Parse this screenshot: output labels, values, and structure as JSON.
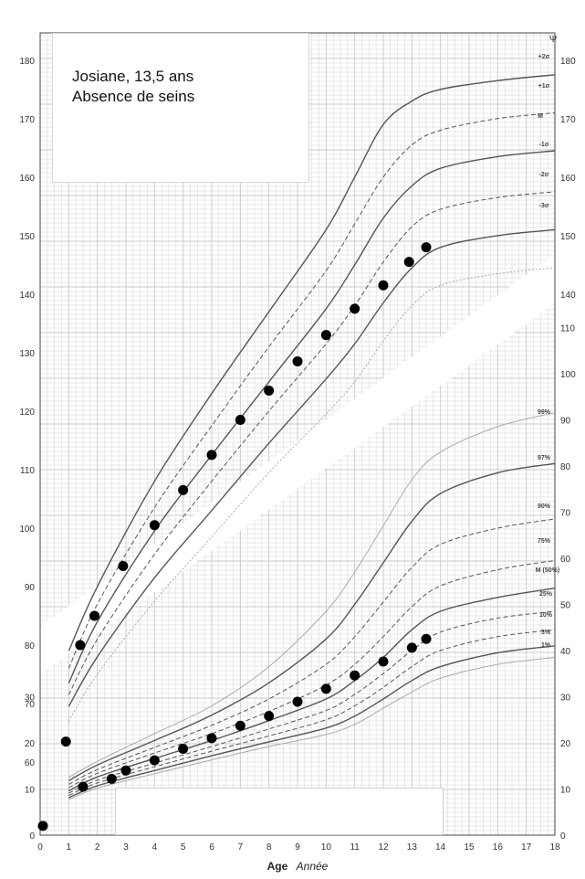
{
  "annotation": {
    "line1": "Josiane, 13,5 ans",
    "line2": "Absence de seins"
  },
  "axis": {
    "x_title_bold": "Age",
    "x_title_italic": "Année",
    "x_ticks": [
      0,
      1,
      2,
      3,
      4,
      5,
      6,
      7,
      8,
      9,
      10,
      11,
      12,
      13,
      14,
      15,
      16,
      17,
      18
    ],
    "height_left_ticks": [
      60,
      70,
      80,
      90,
      100,
      110,
      120,
      130,
      140,
      150,
      160,
      170,
      180
    ],
    "height_right_ticks": [
      140,
      150,
      160,
      170,
      180
    ],
    "weight_left_ticks": [
      0,
      10,
      20,
      30
    ],
    "weight_right_ticks": [
      0,
      10,
      20,
      30,
      40,
      50,
      60,
      70,
      80,
      90,
      100,
      110
    ],
    "corner_symbol": "Ψ"
  },
  "colors": {
    "grid": "#c9c9c9",
    "curve": "#555555",
    "outer_curve": "#aaaaaa",
    "point": "#000000"
  },
  "chart_data": [
    {
      "type": "line",
      "title": "",
      "xlabel": "Age Année",
      "ylabel": "",
      "xlim": [
        0,
        18
      ],
      "ylim": [
        55,
        182
      ],
      "curve_labels": [
        "+2σ",
        "+1σ",
        "M",
        "-1σ",
        "-2σ",
        "-3σ"
      ],
      "series": [
        {
          "name": "+2σ",
          "x": [
            1,
            2,
            4,
            6,
            8,
            10,
            11,
            12,
            13,
            14,
            16,
            18
          ],
          "y": [
            79,
            90,
            108,
            123,
            137,
            151,
            160,
            169,
            173,
            175,
            176.5,
            177.5
          ]
        },
        {
          "name": "+1σ",
          "x": [
            1,
            2,
            4,
            6,
            8,
            10,
            11,
            12,
            13,
            14,
            16,
            18
          ],
          "y": [
            76,
            87,
            103.5,
            117.5,
            131,
            144,
            152,
            160,
            165.5,
            168,
            170,
            171
          ]
        },
        {
          "name": "M",
          "x": [
            1,
            2,
            4,
            6,
            8,
            10,
            11,
            12,
            13,
            14,
            16,
            18
          ],
          "y": [
            73.5,
            84,
            99.5,
            112.5,
            125,
            137.5,
            145,
            153,
            158.5,
            161.5,
            163.5,
            164.5
          ]
        },
        {
          "name": "-1σ",
          "x": [
            1,
            2,
            4,
            6,
            8,
            10,
            11,
            12,
            13,
            14,
            16,
            18
          ],
          "y": [
            71.5,
            81,
            95.5,
            108,
            120,
            131.5,
            138,
            145.5,
            151.5,
            154.5,
            156.5,
            157.5
          ]
        },
        {
          "name": "-2σ",
          "x": [
            1,
            2,
            4,
            6,
            8,
            10,
            11,
            12,
            13,
            14,
            16,
            18
          ],
          "y": [
            69.5,
            78,
            91.5,
            103,
            114.5,
            125.5,
            131.5,
            138.5,
            144.5,
            148,
            150,
            151
          ]
        },
        {
          "name": "-3σ",
          "x": [
            1,
            2,
            4,
            6,
            8,
            10,
            11,
            12,
            13,
            14,
            16,
            18
          ],
          "y": [
            67,
            75,
            87.5,
            98.5,
            109.5,
            119.5,
            125,
            132,
            138,
            141.5,
            143.5,
            144.5
          ]
        }
      ],
      "points": {
        "x": [
          0.9,
          1.4,
          1.9,
          2.9,
          4.0,
          5.0,
          6.0,
          7.0,
          8.0,
          9.0,
          10.0,
          11.0,
          12.0,
          12.9,
          13.5
        ],
        "y": [
          63.5,
          80,
          85,
          93.5,
          100.5,
          106.5,
          112.5,
          118.5,
          123.5,
          128.5,
          133,
          137.5,
          141.5,
          145.5,
          148
        ]
      }
    },
    {
      "type": "line",
      "title": "",
      "xlabel": "Age Année",
      "ylabel": "",
      "xlim": [
        0,
        18
      ],
      "ylim": [
        0,
        115
      ],
      "curve_labels": [
        "99%",
        "97%",
        "90%",
        "75%",
        "M (50%)",
        "25%",
        "10%",
        "3%",
        "1%"
      ],
      "series": [
        {
          "name": "99%",
          "x": [
            1,
            2,
            4,
            6,
            8,
            10,
            11,
            12,
            13,
            14,
            16,
            18
          ],
          "y": [
            12.5,
            16,
            22,
            28,
            36.5,
            48.5,
            57,
            67,
            77,
            83,
            88.5,
            91.5
          ]
        },
        {
          "name": "97%",
          "x": [
            1,
            2,
            4,
            6,
            8,
            10,
            11,
            12,
            13,
            14,
            16,
            18
          ],
          "y": [
            11.8,
            15.2,
            20.5,
            26,
            33,
            42.5,
            50,
            59,
            68,
            74,
            78.5,
            80.5
          ]
        },
        {
          "name": "90%",
          "x": [
            1,
            2,
            4,
            6,
            8,
            10,
            11,
            12,
            13,
            14,
            16,
            18
          ],
          "y": [
            11,
            14.2,
            19,
            23.8,
            29.5,
            37,
            43,
            50.5,
            58,
            63,
            66.5,
            68.5
          ]
        },
        {
          "name": "75%",
          "x": [
            1,
            2,
            4,
            6,
            8,
            10,
            11,
            12,
            13,
            14,
            16,
            18
          ],
          "y": [
            10.3,
            13.4,
            17.8,
            22,
            26.8,
            32.5,
            37,
            43,
            49.5,
            54,
            57.5,
            59.5
          ]
        },
        {
          "name": "M (50%)",
          "x": [
            1,
            2,
            4,
            6,
            8,
            10,
            11,
            12,
            13,
            14,
            16,
            18
          ],
          "y": [
            9.6,
            12.6,
            16.6,
            20.5,
            24.8,
            29.5,
            33.5,
            38.5,
            44.5,
            48.5,
            51.5,
            53.5
          ]
        },
        {
          "name": "25%",
          "x": [
            1,
            2,
            4,
            6,
            8,
            10,
            11,
            12,
            13,
            14,
            16,
            18
          ],
          "y": [
            9.1,
            11.9,
            15.6,
            19.2,
            23,
            27,
            30.5,
            35,
            40,
            44,
            47,
            48.5
          ]
        },
        {
          "name": "10%",
          "x": [
            1,
            2,
            4,
            6,
            8,
            10,
            11,
            12,
            13,
            14,
            16,
            18
          ],
          "y": [
            8.6,
            11.3,
            14.8,
            18.2,
            21.5,
            25,
            28,
            32,
            36.5,
            40,
            43,
            44.5
          ]
        },
        {
          "name": "3%",
          "x": [
            1,
            2,
            4,
            6,
            8,
            10,
            11,
            12,
            13,
            14,
            16,
            18
          ],
          "y": [
            8.1,
            10.7,
            14,
            17.2,
            20.2,
            23.2,
            25.8,
            29.5,
            33.5,
            36.5,
            39.5,
            41
          ]
        },
        {
          "name": "1%",
          "x": [
            1,
            2,
            4,
            6,
            8,
            10,
            11,
            12,
            13,
            14,
            16,
            18
          ],
          "y": [
            7.7,
            10.2,
            13.3,
            16.3,
            19.2,
            21.8,
            24,
            27.5,
            31,
            34,
            37,
            38.5
          ]
        }
      ],
      "points": {
        "x": [
          0.05,
          1.5,
          2.5,
          3.0,
          4.0,
          5.0,
          6.0,
          7.0,
          8.0,
          9.0,
          10.0,
          11.0,
          12.0,
          13.0,
          13.5
        ],
        "y": [
          2,
          10.5,
          12.2,
          14,
          16.2,
          18.7,
          21,
          23.7,
          25.8,
          28.9,
          31.7,
          34.6,
          37.6,
          40.6,
          42.5
        ]
      }
    }
  ]
}
